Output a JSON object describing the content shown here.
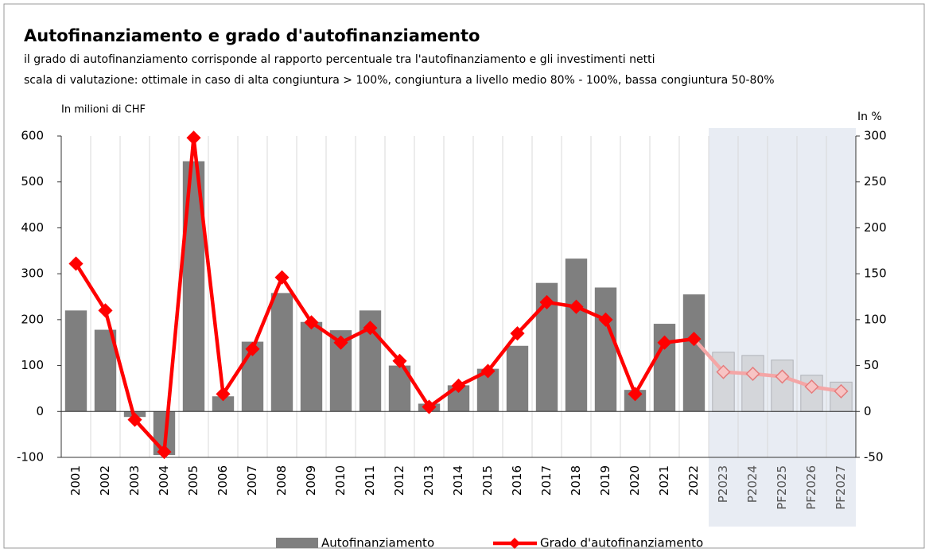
{
  "chart_data": {
    "type": "bar_line",
    "title": "Autofinanziamento e grado d'autofinanziamento",
    "subtitle": [
      "il grado di autofinanziamento corrisponde al rapporto percentuale tra l'autofinanziamento e gli investimenti netti",
      "scala di valutazione: ottimale in caso di alta congiuntura > 100%, congiuntura a livello medio 80% - 100%, bassa congiuntura 50-80%"
    ],
    "y_label": "In milioni di CHF",
    "y2_label": "In %",
    "categories": [
      "2001",
      "2002",
      "2003",
      "2004",
      "2005",
      "2006",
      "2007",
      "2008",
      "2009",
      "2010",
      "2011",
      "2012",
      "2013",
      "2014",
      "2015",
      "2016",
      "2017",
      "2018",
      "2019",
      "2020",
      "2021",
      "2022",
      "P2023",
      "P2024",
      "PF2025",
      "PF2026",
      "PF2027"
    ],
    "highlight_from": "P2023",
    "series": [
      {
        "name": "Autofinanziamento",
        "type": "bar",
        "color": "#7f7f7f",
        "forecast_color": "#d4d6da",
        "values": [
          220,
          178,
          -12,
          -95,
          545,
          33,
          152,
          258,
          195,
          177,
          220,
          100,
          17,
          57,
          93,
          143,
          280,
          333,
          270,
          47,
          191,
          255,
          129,
          122,
          112,
          79,
          64
        ]
      },
      {
        "name": "Grado d'autofinanziamento",
        "type": "line",
        "axis": "y2",
        "color": "#ff0000",
        "forecast_color": "#f4a6a6",
        "values": [
          161,
          110,
          -9,
          -44,
          298,
          19,
          68,
          146,
          97,
          75,
          91,
          55,
          5,
          28,
          44,
          85,
          119,
          114,
          100,
          19,
          75,
          79,
          43,
          41,
          38,
          27,
          22
        ]
      }
    ],
    "ylim": [
      -100,
      600
    ],
    "yticks": [
      -100,
      0,
      100,
      200,
      300,
      400,
      500,
      600
    ],
    "y2lim": [
      -50,
      300
    ],
    "y2ticks": [
      -50,
      0,
      50,
      100,
      150,
      200,
      250,
      300
    ]
  }
}
